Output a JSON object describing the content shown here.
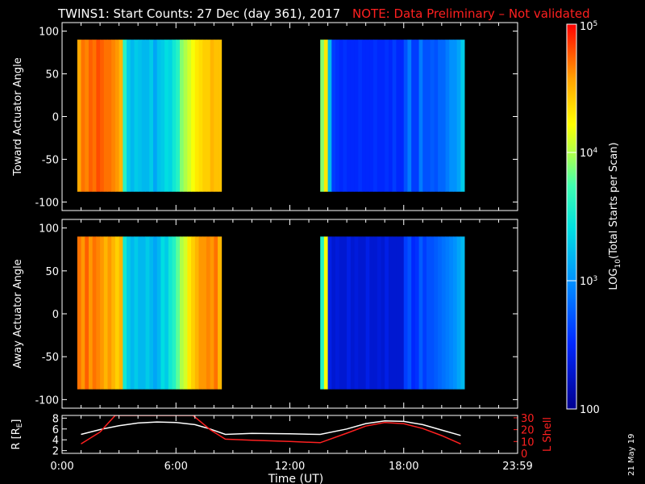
{
  "title": {
    "main": "TWINS1: Start Counts: 27 Dec (day 361), 2017",
    "note": "NOTE: Data Preliminary – Not validated",
    "note_color": "#ff2020"
  },
  "date_stamp": "21 May 19",
  "colorbar": {
    "label": "LOG10(Total Starts per Scan)",
    "label_base": "LOG",
    "label_sub": "10",
    "label_rest": "(Total Starts per Scan)",
    "ticks": [
      {
        "value": 100,
        "label": "100"
      },
      {
        "value": 1000,
        "label": "10",
        "exp": "3"
      },
      {
        "value": 10000,
        "label": "10",
        "exp": "4"
      },
      {
        "value": 100000,
        "label": "10",
        "exp": "5"
      }
    ],
    "range": [
      100,
      100000
    ],
    "scale": "log"
  },
  "x_axis": {
    "label": "Time (UT)",
    "range_hours": [
      0,
      24
    ],
    "ticks": [
      {
        "hour": 0,
        "label": "0:00"
      },
      {
        "hour": 6,
        "label": "6:00"
      },
      {
        "hour": 12,
        "label": "12:00"
      },
      {
        "hour": 18,
        "label": "18:00"
      },
      {
        "hour": 24,
        "label": "23:59"
      }
    ]
  },
  "chart_data": [
    {
      "type": "heatmap",
      "ylabel": "Toward Actuator Angle",
      "ylim": [
        -110,
        110
      ],
      "yticks": [
        -100,
        -50,
        0,
        50,
        100
      ],
      "data_extent": {
        "angle": [
          -88,
          90
        ]
      },
      "segments": [
        {
          "start_hour": 0.8,
          "end_hour": 8.4,
          "column_log_values": [
            4.55,
            4.7,
            4.65,
            4.75,
            4.7,
            4.8,
            4.75,
            4.7,
            4.7,
            4.65,
            4.6,
            4.5,
            3.6,
            3.3,
            3.2,
            3.3,
            3.25,
            3.2,
            3.2,
            3.3,
            3.1,
            3.25,
            3.3,
            3.4,
            3.35,
            3.5,
            3.6,
            3.9,
            4.0,
            4.1,
            4.2,
            4.3,
            4.35,
            4.4,
            4.4,
            4.5,
            4.45,
            4.45
          ]
        },
        {
          "start_hour": 13.6,
          "end_hour": 21.2,
          "column_log_values": [
            3.9,
            4.3,
            3.2,
            2.6,
            2.55,
            2.5,
            2.55,
            2.5,
            2.5,
            2.5,
            2.55,
            2.5,
            2.5,
            2.5,
            2.55,
            2.5,
            2.5,
            2.55,
            2.5,
            2.6,
            2.5,
            2.5,
            2.7,
            2.9,
            2.6,
            2.6,
            2.9,
            2.7,
            2.7,
            2.75,
            2.7,
            2.8,
            2.8,
            2.9,
            3.0,
            3.0,
            3.1,
            3.3
          ]
        }
      ]
    },
    {
      "type": "heatmap",
      "ylabel": "Away Actuator Angle",
      "ylim": [
        -110,
        110
      ],
      "yticks": [
        -100,
        -50,
        0,
        50,
        100
      ],
      "data_extent": {
        "angle": [
          -88,
          90
        ]
      },
      "segments": [
        {
          "start_hour": 0.8,
          "end_hour": 8.4,
          "column_log_values": [
            4.7,
            4.6,
            4.75,
            4.6,
            4.7,
            4.65,
            4.6,
            4.5,
            4.6,
            4.5,
            4.4,
            4.5,
            3.5,
            3.3,
            3.2,
            3.3,
            3.2,
            3.2,
            3.3,
            3.2,
            3.1,
            3.2,
            3.4,
            3.3,
            3.5,
            3.6,
            3.8,
            4.0,
            4.1,
            4.3,
            4.4,
            4.5,
            4.6,
            4.6,
            4.65,
            4.6,
            4.7,
            4.5
          ]
        },
        {
          "start_hour": 13.6,
          "end_hour": 21.2,
          "column_log_values": [
            3.6,
            4.2,
            2.4,
            2.3,
            2.35,
            2.3,
            2.3,
            2.4,
            2.3,
            2.35,
            2.3,
            2.3,
            2.4,
            2.3,
            2.3,
            2.35,
            2.3,
            2.4,
            2.3,
            2.3,
            2.3,
            2.3,
            2.6,
            2.7,
            2.5,
            2.55,
            2.75,
            2.6,
            2.7,
            2.7,
            2.75,
            2.8,
            2.85,
            2.9,
            2.95,
            3.0,
            3.1,
            3.2
          ]
        }
      ]
    },
    {
      "type": "line",
      "ylabel": "R [RE]",
      "ylabel_base": "R [R",
      "ylabel_sub": "E",
      "ylabel_end": "]",
      "ylim": [
        1.5,
        8.5
      ],
      "yticks": [
        2,
        4,
        6,
        8
      ],
      "y2label": "L Shell",
      "y2lim": [
        0,
        32
      ],
      "y2ticks": [
        0,
        10,
        20,
        30
      ],
      "y2tick_labels": [
        "0",
        "10",
        "20",
        "30"
      ],
      "series": [
        {
          "color": "#ffffff",
          "x": [
            1.0,
            2.0,
            3.0,
            4.0,
            5.0,
            6.0,
            7.0,
            7.8,
            8.6,
            10.0,
            12.0,
            13.6,
            15.0,
            16.0,
            17.0,
            18.0,
            19.0,
            20.0,
            21.0
          ],
          "y": [
            5.0,
            5.9,
            6.6,
            7.1,
            7.3,
            7.2,
            6.8,
            6.0,
            5.0,
            5.2,
            5.1,
            5.0,
            6.0,
            7.0,
            7.5,
            7.4,
            6.8,
            5.8,
            4.8
          ]
        },
        {
          "color": "#ff2020",
          "axis": "y2",
          "x": [
            1.0,
            2.0,
            2.8,
            6.9,
            7.8,
            8.6,
            10.0,
            12.0,
            13.6,
            15.0,
            16.0,
            17.0,
            18.0,
            19.0,
            20.0,
            21.0
          ],
          "y": [
            8,
            18,
            32,
            32,
            20,
            12,
            11,
            10,
            9,
            17,
            23,
            26,
            25,
            21,
            15,
            8
          ]
        }
      ]
    }
  ]
}
